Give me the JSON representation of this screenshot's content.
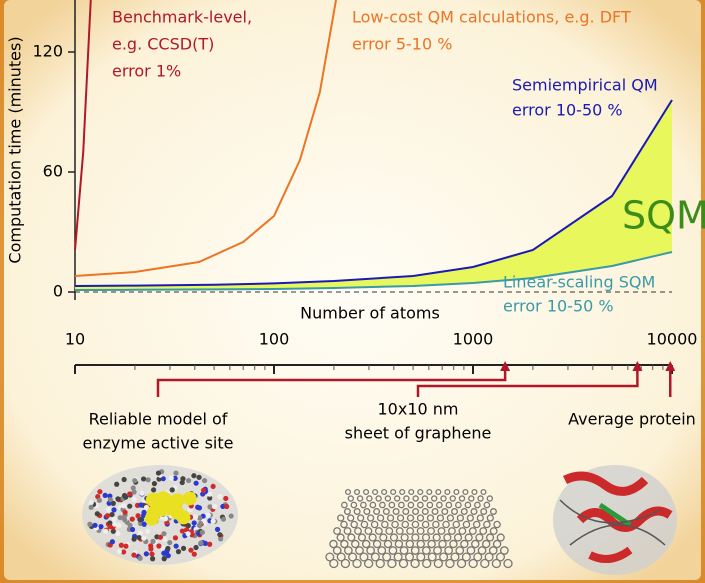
{
  "chart_data": {
    "type": "line",
    "y_label": "Computation time (minutes)",
    "x_label": "Number of atoms",
    "xlim": [
      10,
      10000
    ],
    "xticks": [
      10,
      100,
      1000,
      10000
    ],
    "xscale": "log",
    "ylim": [
      -4,
      146
    ],
    "yticks": [
      0,
      60,
      120
    ],
    "zero_line": true,
    "series": [
      {
        "color": "#b0182a",
        "x": [
          10,
          11,
          12
        ],
        "values": [
          21,
          70,
          146
        ]
      },
      {
        "color": "#ec7424",
        "x": [
          10,
          20,
          42,
          70,
          100,
          135,
          170,
          205
        ],
        "values": [
          8,
          10,
          15,
          25,
          38,
          66,
          100,
          146
        ]
      },
      {
        "color": "#1a1ab4",
        "x": [
          10,
          20,
          50,
          100,
          200,
          500,
          1000,
          2000,
          5000,
          10000
        ],
        "values": [
          3,
          3.2,
          3.6,
          4.3,
          5.5,
          8,
          12.5,
          21,
          48,
          96
        ]
      },
      {
        "color": "#3a9aa8",
        "x": [
          10,
          20,
          50,
          100,
          200,
          500,
          1000,
          2000,
          5000,
          10000
        ],
        "values": [
          1,
          1.1,
          1.3,
          1.5,
          2,
          3,
          4.5,
          7,
          13,
          20
        ]
      }
    ],
    "band_color": "#e8f75c",
    "annotations": [
      {
        "lines": [
          "Benchmark-level,",
          "e.g. CCSD(T)",
          "error 1%"
        ],
        "color": "#b0182a"
      },
      {
        "lines": [
          "Low-cost QM calculations, e.g. DFT",
          "error 5-10 %"
        ],
        "color": "#ec7424"
      },
      {
        "lines": [
          "Semiempirical QM",
          "error 10-50 %"
        ],
        "color": "#1a1ab4"
      },
      {
        "lines": [
          "SQM"
        ],
        "color": "#3c8c1c"
      },
      {
        "lines": [
          "Linear-scaling SQM",
          "error 10-50 %"
        ],
        "color": "#3a9aa8"
      }
    ],
    "markers": [
      {
        "x": 1450,
        "lines": [
          "Reliable model of",
          "enzyme active site"
        ]
      },
      {
        "x": 6700,
        "lines": [
          "10x10 nm",
          "sheet of graphene"
        ]
      },
      {
        "x": 9800,
        "lines": [
          "Average protein"
        ]
      }
    ],
    "marker_color": "#b0182a"
  }
}
